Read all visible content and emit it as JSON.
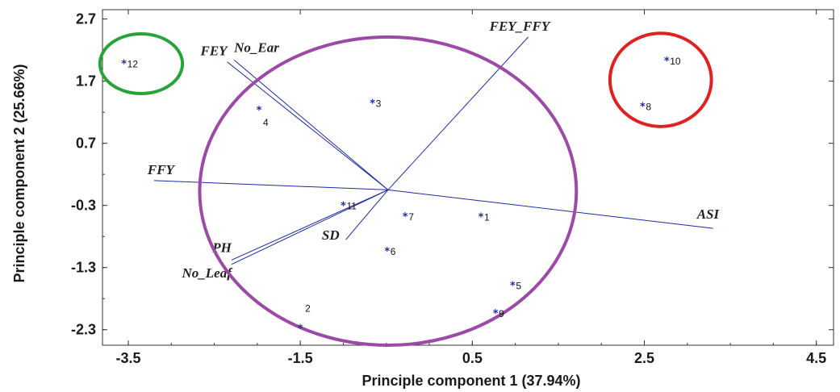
{
  "chart_data": {
    "type": "scatter",
    "subtype": "pca-biplot",
    "title": "",
    "xlabel": "Principle component 1 (37.94%)",
    "ylabel": "Principle component 2 (25.66%)",
    "xlim": [
      -3.8,
      4.7
    ],
    "ylim": [
      -2.55,
      2.85
    ],
    "xticks": [
      "-3.5",
      "-1.5",
      "0.5",
      "2.5",
      "4.5"
    ],
    "xtick_values": [
      -3.5,
      -1.5,
      0.5,
      2.5,
      4.5
    ],
    "yticks": [
      "2.7",
      "1.7",
      "0.7",
      "-0.3",
      "-1.3",
      "-2.3"
    ],
    "ytick_values": [
      2.7,
      1.7,
      0.7,
      -0.3,
      -1.3,
      -2.3
    ],
    "grid": false,
    "origin": [
      -0.48,
      -0.05
    ],
    "points": [
      {
        "label": "1",
        "x": 0.6,
        "y": -0.48
      },
      {
        "label": "2",
        "x": -1.5,
        "y": -2.27
      },
      {
        "label": "3",
        "x": -0.66,
        "y": 1.35
      },
      {
        "label": "4",
        "x": -1.98,
        "y": 1.24
      },
      {
        "label": "5",
        "x": 0.97,
        "y": -1.58
      },
      {
        "label": "6",
        "x": -0.49,
        "y": -1.03
      },
      {
        "label": "7",
        "x": -0.28,
        "y": -0.47
      },
      {
        "label": "8",
        "x": 2.48,
        "y": 1.3
      },
      {
        "label": "9",
        "x": 0.77,
        "y": -2.03
      },
      {
        "label": "10",
        "x": 2.76,
        "y": 2.03
      },
      {
        "label": "11",
        "x": -1.0,
        "y": -0.3
      },
      {
        "label": "12",
        "x": -3.55,
        "y": 1.99
      }
    ],
    "vectors": [
      {
        "label": "FEY_FFY",
        "x": 1.15,
        "y": 2.41
      },
      {
        "label": "FEY",
        "x": -2.35,
        "y": 2.01
      },
      {
        "label": "No_Ear",
        "x": -2.27,
        "y": 2.04
      },
      {
        "label": "FFY",
        "x": -3.2,
        "y": 0.1
      },
      {
        "label": "ASI",
        "x": 3.3,
        "y": -0.67
      },
      {
        "label": "SD",
        "x": -0.97,
        "y": -0.85
      },
      {
        "label": "PH",
        "x": -2.3,
        "y": -1.18
      },
      {
        "label": "No_Leaf",
        "x": -2.3,
        "y": -1.25
      }
    ],
    "groups": [
      {
        "color": "#9b4aa6",
        "cx": -0.48,
        "cy": -0.07,
        "rx": 2.19,
        "ry": 2.48
      },
      {
        "color": "#e02121",
        "cx": 2.69,
        "cy": 1.72,
        "rx": 0.59,
        "ry": 0.75
      },
      {
        "color": "#27a33a",
        "cx": -3.35,
        "cy": 1.98,
        "rx": 0.48,
        "ry": 0.48
      }
    ]
  }
}
